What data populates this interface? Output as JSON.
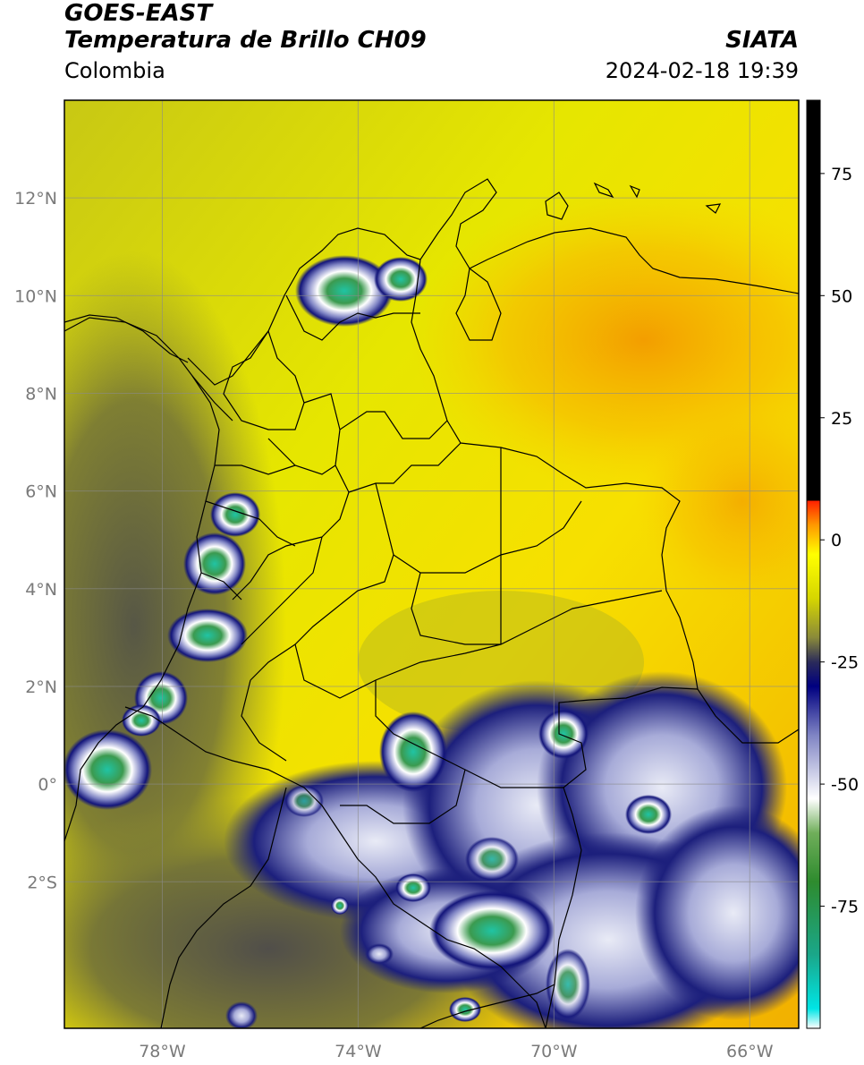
{
  "header": {
    "line1": "GOES-EAST",
    "line2": "Temperatura de Brillo CH09",
    "region": "Colombia",
    "org": "SIATA",
    "datetime": "2024-02-18 19:39"
  },
  "map": {
    "lon_range": [
      -80,
      -65
    ],
    "lat_range": [
      -5,
      14
    ],
    "lat_ticks": [
      {
        "value": 12,
        "label": "12°N"
      },
      {
        "value": 10,
        "label": "10°N"
      },
      {
        "value": 8,
        "label": "8°N"
      },
      {
        "value": 6,
        "label": "6°N"
      },
      {
        "value": 4,
        "label": "4°N"
      },
      {
        "value": 2,
        "label": "2°N"
      },
      {
        "value": 0,
        "label": "0°"
      },
      {
        "value": -2,
        "label": "2°S"
      }
    ],
    "lon_ticks": [
      {
        "value": -78,
        "label": "78°W"
      },
      {
        "value": -74,
        "label": "74°W"
      },
      {
        "value": -70,
        "label": "70°W"
      },
      {
        "value": -66,
        "label": "66°W"
      }
    ],
    "gridlines": true
  },
  "colorbar": {
    "range": [
      -100,
      90
    ],
    "ticks": [
      {
        "value": 75,
        "label": "75"
      },
      {
        "value": 50,
        "label": "50"
      },
      {
        "value": 25,
        "label": "25"
      },
      {
        "value": 0,
        "label": "0"
      },
      {
        "value": -25,
        "label": "-25"
      },
      {
        "value": -50,
        "label": "-50"
      },
      {
        "value": -75,
        "label": "-75"
      }
    ],
    "stops": [
      {
        "value": -100,
        "color": "#ffffff"
      },
      {
        "value": -96,
        "color": "#00e5e5"
      },
      {
        "value": -85,
        "color": "#1aa78a"
      },
      {
        "value": -70,
        "color": "#2e8b2e"
      },
      {
        "value": -60,
        "color": "#6fae5a"
      },
      {
        "value": -53,
        "color": "#ffffff"
      },
      {
        "value": -40,
        "color": "#7f84c4"
      },
      {
        "value": -30,
        "color": "#000080"
      },
      {
        "value": -25,
        "color": "#2b2b5a"
      },
      {
        "value": -20,
        "color": "#8a8a3a"
      },
      {
        "value": -12,
        "color": "#d6d600"
      },
      {
        "value": -3,
        "color": "#ffff00"
      },
      {
        "value": 3,
        "color": "#ff9900"
      },
      {
        "value": 8,
        "color": "#ff2000"
      },
      {
        "value": 8.01,
        "color": "#000000"
      },
      {
        "value": 90,
        "color": "#000000"
      }
    ]
  },
  "colors": {
    "background_yellow": "#e4e400",
    "warm_orange": "#f6a800",
    "cloud_navy": "#1c1f7c",
    "cloud_white": "#e8eaf4",
    "cloud_green": "#3b9a4f",
    "cloud_teal": "#28c8a8",
    "olive": "#7f7f32",
    "dark_olive": "#4b4b3a"
  }
}
